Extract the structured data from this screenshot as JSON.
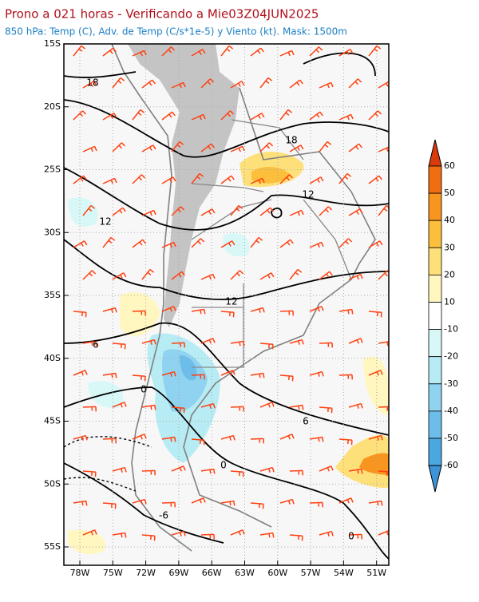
{
  "header": {
    "title": "Prono a 021 horas - Verificando a Mie03Z04JUN2025",
    "subtitle": "850 hPa: Temp (C), Adv. de Temp (C/s*1e-5) y Viento (kt). Mask: 1500m"
  },
  "map": {
    "lat_labels": [
      "15S",
      "20S",
      "25S",
      "30S",
      "35S",
      "40S",
      "45S",
      "50S",
      "55S"
    ],
    "lon_labels": [
      "78W",
      "75W",
      "72W",
      "69W",
      "66W",
      "63W",
      "60W",
      "57W",
      "54W",
      "51W"
    ],
    "contour_labels": [
      "18",
      "18",
      "12",
      "12",
      "12",
      "6",
      "0",
      "6",
      "0",
      "-6",
      "0"
    ]
  },
  "colorbar": {
    "labels": [
      "60",
      "50",
      "40",
      "30",
      "20",
      "10",
      "-10",
      "-20",
      "-30",
      "-40",
      "-50",
      "-60"
    ]
  }
}
